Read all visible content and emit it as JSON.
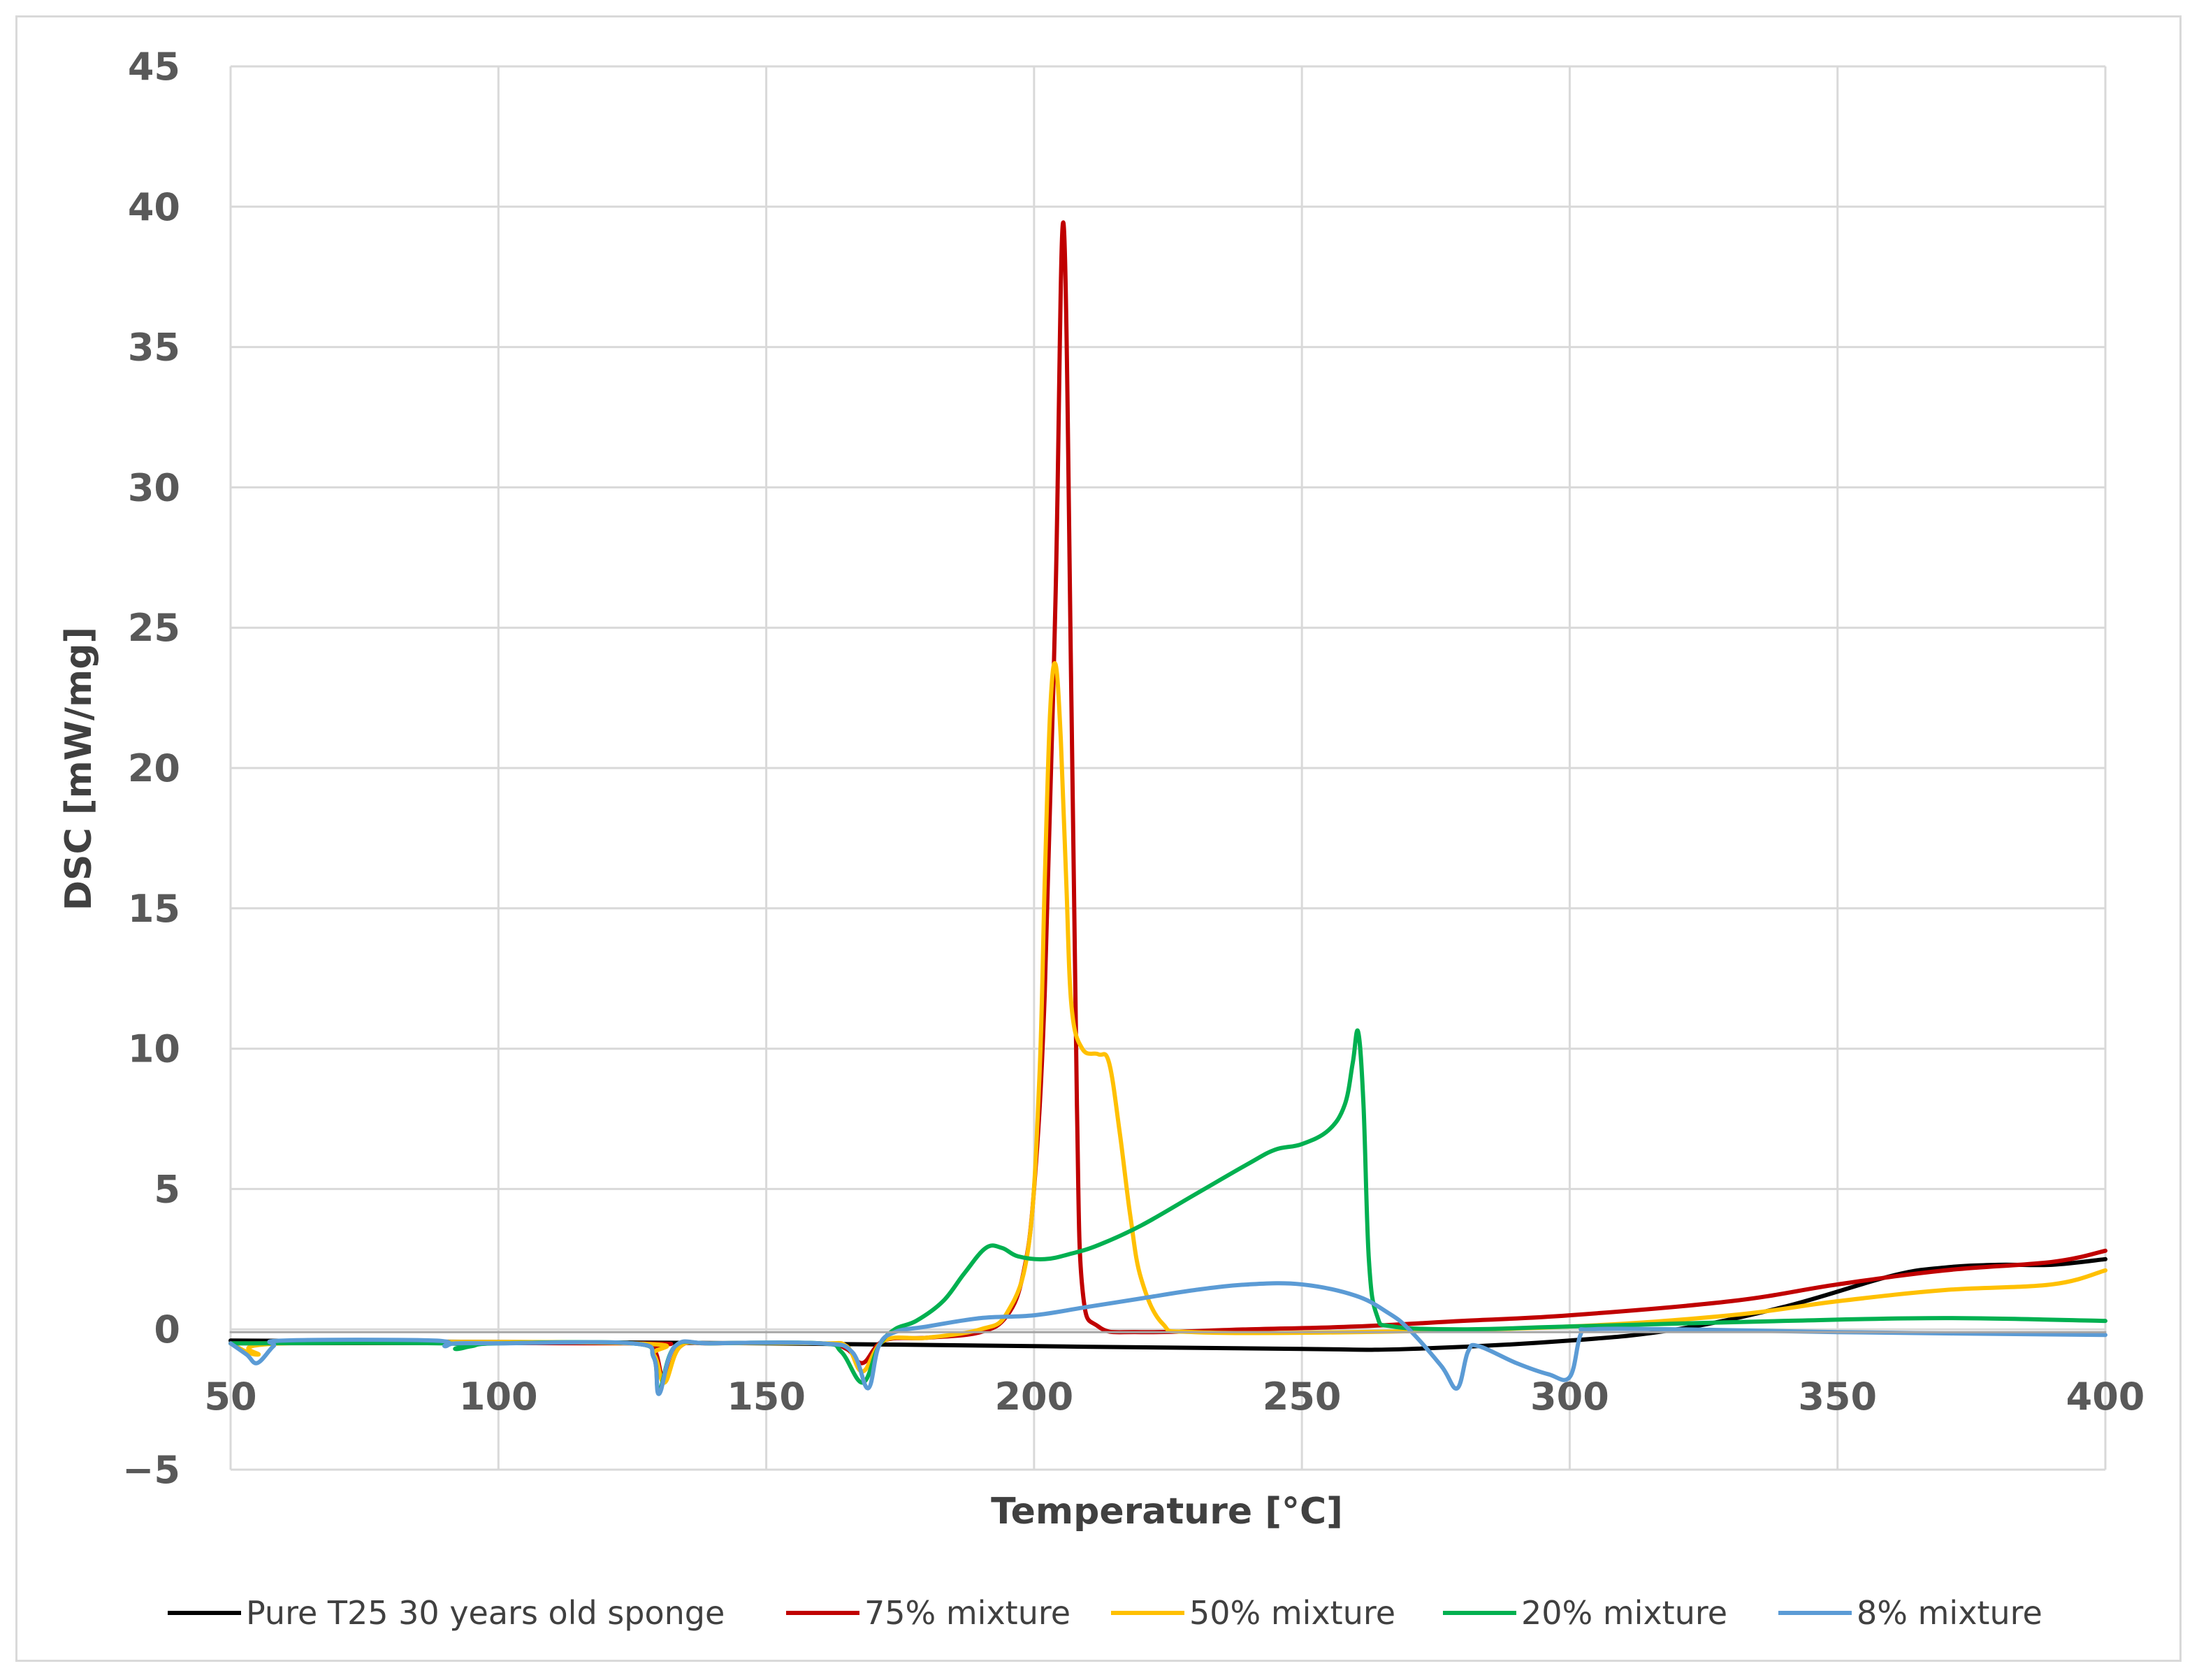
{
  "chart_data": {
    "type": "line",
    "xlabel": "Temperature [°C]",
    "ylabel": "DSC [mW/mg]",
    "xlim": [
      50,
      400
    ],
    "ylim": [
      -5,
      45
    ],
    "xticks": [
      50,
      100,
      150,
      200,
      250,
      300,
      350,
      400
    ],
    "yticks": [
      -5,
      0,
      5,
      10,
      15,
      20,
      25,
      30,
      35,
      40,
      45
    ],
    "ytick_labels": [
      "−5",
      "0",
      "5",
      "10",
      "15",
      "20",
      "25",
      "30",
      "35",
      "40",
      "45"
    ],
    "grid": true,
    "legend_position": "bottom",
    "series": [
      {
        "name": "Pure T25 30 years old sponge",
        "color": "#000000",
        "points": [
          [
            50,
            -0.4
          ],
          [
            100,
            -0.45
          ],
          [
            150,
            -0.5
          ],
          [
            200,
            -0.6
          ],
          [
            250,
            -0.7
          ],
          [
            270,
            -0.7
          ],
          [
            300,
            -0.4
          ],
          [
            320,
            0
          ],
          [
            340,
            0.8
          ],
          [
            360,
            1.9
          ],
          [
            370,
            2.2
          ],
          [
            380,
            2.3
          ],
          [
            390,
            2.3
          ],
          [
            400,
            2.5
          ]
        ]
      },
      {
        "name": "75% mixture",
        "color": "#c00000",
        "points": [
          [
            50,
            -0.5
          ],
          [
            125,
            -0.5
          ],
          [
            129,
            -0.7
          ],
          [
            131,
            -1.8
          ],
          [
            134,
            -0.6
          ],
          [
            140,
            -0.5
          ],
          [
            160,
            -0.5
          ],
          [
            165,
            -0.7
          ],
          [
            168,
            -1.2
          ],
          [
            172,
            -0.4
          ],
          [
            180,
            -0.3
          ],
          [
            190,
            -0.1
          ],
          [
            195,
            0.5
          ],
          [
            198,
            2
          ],
          [
            200,
            5
          ],
          [
            202,
            12
          ],
          [
            204,
            26
          ],
          [
            205.5,
            39.4
          ],
          [
            207,
            22
          ],
          [
            208,
            8
          ],
          [
            209,
            1.5
          ],
          [
            212,
            0.1
          ],
          [
            220,
            -0.1
          ],
          [
            240,
            0
          ],
          [
            260,
            0.1
          ],
          [
            280,
            0.3
          ],
          [
            300,
            0.5
          ],
          [
            330,
            1
          ],
          [
            350,
            1.6
          ],
          [
            370,
            2.1
          ],
          [
            390,
            2.4
          ],
          [
            400,
            2.8
          ]
        ]
      },
      {
        "name": "50% mixture",
        "color": "#ffc000",
        "points": [
          [
            50,
            -0.5
          ],
          [
            55,
            -0.9
          ],
          [
            60,
            -0.5
          ],
          [
            125,
            -0.5
          ],
          [
            129,
            -0.9
          ],
          [
            131,
            -1.9
          ],
          [
            134,
            -0.6
          ],
          [
            140,
            -0.5
          ],
          [
            160,
            -0.5
          ],
          [
            165,
            -0.6
          ],
          [
            168,
            -1.5
          ],
          [
            172,
            -0.4
          ],
          [
            180,
            -0.3
          ],
          [
            190,
            0
          ],
          [
            195,
            0.6
          ],
          [
            199,
            3
          ],
          [
            201,
            9
          ],
          [
            202,
            16
          ],
          [
            203,
            22
          ],
          [
            204,
            23.7
          ],
          [
            205,
            21
          ],
          [
            206,
            16
          ],
          [
            207,
            11.5
          ],
          [
            209,
            10
          ],
          [
            212,
            9.8
          ],
          [
            214,
            9.5
          ],
          [
            216,
            7
          ],
          [
            218,
            4
          ],
          [
            220,
            1.8
          ],
          [
            224,
            0.2
          ],
          [
            230,
            -0.1
          ],
          [
            260,
            -0.1
          ],
          [
            300,
            0.1
          ],
          [
            330,
            0.5
          ],
          [
            350,
            1
          ],
          [
            370,
            1.4
          ],
          [
            390,
            1.6
          ],
          [
            400,
            2.1
          ]
        ]
      },
      {
        "name": "20% mixture",
        "color": "#00b050",
        "points": [
          [
            50,
            -0.5
          ],
          [
            90,
            -0.5
          ],
          [
            92,
            -0.7
          ],
          [
            95,
            -0.6
          ],
          [
            100,
            -0.5
          ],
          [
            125,
            -0.5
          ],
          [
            129,
            -1
          ],
          [
            130,
            -2.2
          ],
          [
            133,
            -0.6
          ],
          [
            140,
            -0.5
          ],
          [
            160,
            -0.5
          ],
          [
            164,
            -0.8
          ],
          [
            168,
            -1.9
          ],
          [
            171,
            -0.6
          ],
          [
            174,
            0
          ],
          [
            178,
            0.3
          ],
          [
            183,
            1
          ],
          [
            187,
            2
          ],
          [
            191,
            2.9
          ],
          [
            194,
            2.9
          ],
          [
            197,
            2.6
          ],
          [
            202,
            2.5
          ],
          [
            207,
            2.7
          ],
          [
            212,
            3
          ],
          [
            220,
            3.7
          ],
          [
            230,
            4.8
          ],
          [
            240,
            5.9
          ],
          [
            245,
            6.4
          ],
          [
            250,
            6.6
          ],
          [
            255,
            7.1
          ],
          [
            258,
            8
          ],
          [
            259.5,
            9.5
          ],
          [
            260.5,
            10.6
          ],
          [
            261.5,
            8
          ],
          [
            262.5,
            2.5
          ],
          [
            264,
            0.5
          ],
          [
            267,
            0.1
          ],
          [
            280,
            0
          ],
          [
            300,
            0.1
          ],
          [
            340,
            0.3
          ],
          [
            370,
            0.4
          ],
          [
            400,
            0.3
          ]
        ]
      },
      {
        "name": "8% mixture",
        "color": "#5b9bd5",
        "points": [
          [
            50,
            -0.5
          ],
          [
            53,
            -0.9
          ],
          [
            55,
            -1.2
          ],
          [
            58,
            -0.6
          ],
          [
            60,
            -0.4
          ],
          [
            88,
            -0.4
          ],
          [
            90,
            -0.6
          ],
          [
            92,
            -0.5
          ],
          [
            100,
            -0.5
          ],
          [
            125,
            -0.5
          ],
          [
            129,
            -1
          ],
          [
            130,
            -2.3
          ],
          [
            133,
            -0.6
          ],
          [
            140,
            -0.5
          ],
          [
            160,
            -0.5
          ],
          [
            166,
            -0.8
          ],
          [
            169,
            -2.1
          ],
          [
            171,
            -0.6
          ],
          [
            174,
            -0.1
          ],
          [
            180,
            0.1
          ],
          [
            190,
            0.4
          ],
          [
            200,
            0.5
          ],
          [
            210,
            0.8
          ],
          [
            220,
            1.1
          ],
          [
            230,
            1.4
          ],
          [
            240,
            1.6
          ],
          [
            250,
            1.6
          ],
          [
            260,
            1.2
          ],
          [
            266,
            0.6
          ],
          [
            270,
            0
          ],
          [
            276,
            -1.3
          ],
          [
            279,
            -2.1
          ],
          [
            281,
            -0.8
          ],
          [
            283,
            -0.6
          ],
          [
            290,
            -1.2
          ],
          [
            296,
            -1.6
          ],
          [
            300,
            -1.7
          ],
          [
            302,
            -0.2
          ],
          [
            304,
            0
          ],
          [
            320,
            0
          ],
          [
            350,
            -0.1
          ],
          [
            400,
            -0.2
          ]
        ]
      },
      {
        "name": "",
        "color": "#a5a5a5",
        "points": [
          [
            50,
            -0.1
          ],
          [
            400,
            -0.1
          ]
        ]
      }
    ]
  }
}
